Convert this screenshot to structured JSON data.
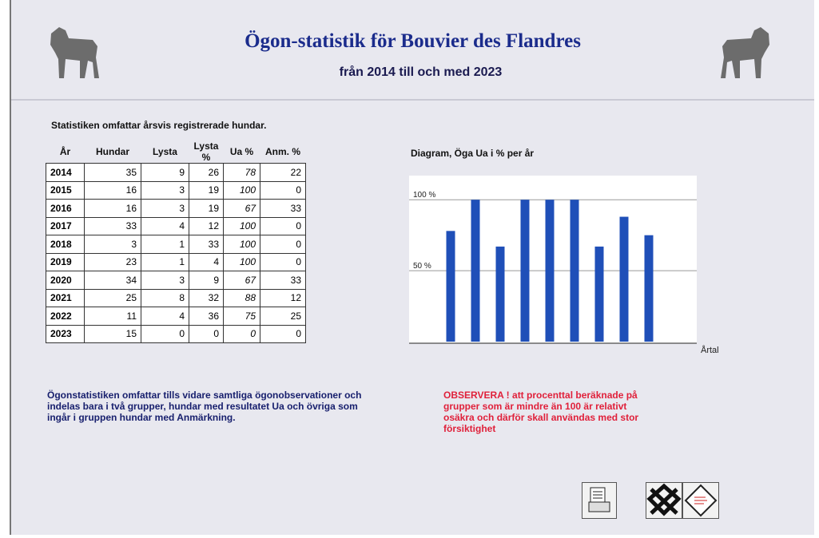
{
  "header": {
    "title": "Ögon-statistik för Bouvier des Flandres",
    "subtitle": "från 2014 till och med 2023"
  },
  "intro": "Statistiken omfattar årsvis registrerade hundar.",
  "table": {
    "headers": [
      "År",
      "Hundar",
      "Lysta",
      "Lysta %",
      "Ua %",
      "Anm. %"
    ],
    "rows": [
      [
        2014,
        35,
        9,
        26,
        78,
        22
      ],
      [
        2015,
        16,
        3,
        19,
        100,
        0
      ],
      [
        2016,
        16,
        3,
        19,
        67,
        33
      ],
      [
        2017,
        33,
        4,
        12,
        100,
        0
      ],
      [
        2018,
        3,
        1,
        33,
        100,
        0
      ],
      [
        2019,
        23,
        1,
        4,
        100,
        0
      ],
      [
        2020,
        34,
        3,
        9,
        67,
        33
      ],
      [
        2021,
        25,
        8,
        32,
        88,
        12
      ],
      [
        2022,
        11,
        4,
        36,
        75,
        25
      ],
      [
        2023,
        15,
        0,
        0,
        0,
        0
      ]
    ]
  },
  "chart": {
    "type": "bar",
    "title": "Diagram, Öga Ua i % per år",
    "x_label": "Årtal",
    "color": "#1f4fb8",
    "ylim": [
      0,
      117
    ],
    "yticks": [
      {
        "value": 50,
        "label": "50 %"
      },
      {
        "value": 100,
        "label": "100 %"
      }
    ],
    "grid": true
  },
  "note": [
    "Ögonstatistiken omfattar tills vidare samtliga ögonobservationer och",
    "indelas bara i två grupper, hundar med resultatet Ua och övriga som",
    "ingår i gruppen hundar med Anmärkning."
  ],
  "warning": [
    "OBSERVERA ! att procenttal beräknade på",
    "grupper som är mindre än 100 är relativt",
    "osäkra och därför skall användas med stor",
    "försiktighet"
  ]
}
